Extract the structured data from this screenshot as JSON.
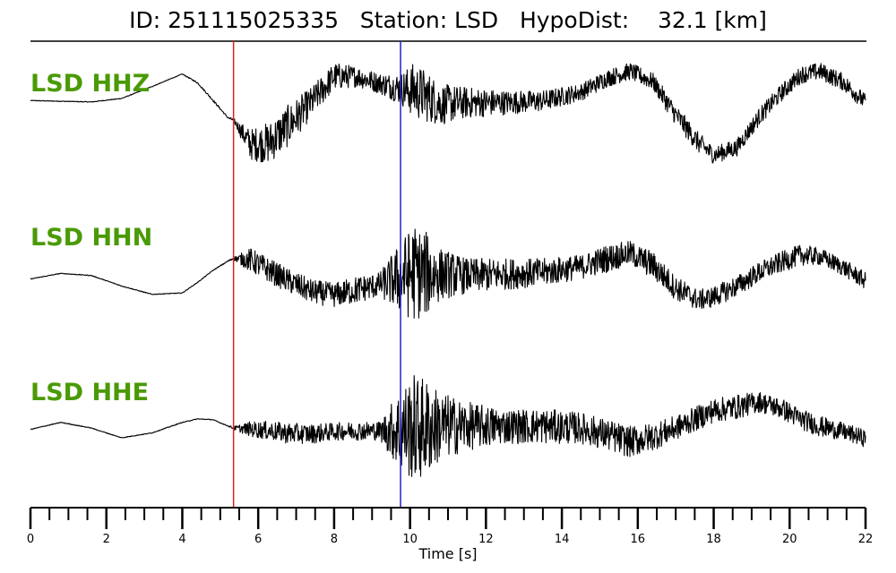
{
  "header": {
    "title": "ID: 251115025335   Station: LSD   HypoDist:    32.1 [km]"
  },
  "colors": {
    "label": "#4a9a06",
    "trace": "#000000",
    "p_pick": "#e02020",
    "s_pick": "#2020d0"
  },
  "chart_data": {
    "type": "line",
    "title": "ID: 251115025335   Station: LSD   HypoDist:    32.1 [km]",
    "xlabel": "Time [s]",
    "xlim": [
      0,
      22
    ],
    "x_ticks": [
      0,
      2,
      4,
      6,
      8,
      10,
      12,
      14,
      16,
      18,
      20,
      22
    ],
    "x_minor_step": 0.5,
    "grid": false,
    "picks": [
      {
        "phase": "P",
        "time": 5.35,
        "color": "#e02020"
      },
      {
        "phase": "S",
        "time": 9.75,
        "color": "#2020d0"
      }
    ],
    "series": [
      {
        "name": "LSD HHZ",
        "envelope": {
          "t": [
            0,
            0.8,
            1.6,
            2.4,
            3.2,
            4.0,
            4.4,
            4.8,
            5.2,
            5.35,
            5.8,
            6.3,
            6.8,
            7.4,
            8.0,
            8.6,
            9.2,
            9.75,
            10.1,
            10.4,
            10.8,
            11.5,
            12.5,
            13.5,
            14.5,
            15.2,
            15.8,
            16.4,
            17.0,
            17.6,
            18.0,
            18.6,
            19.2,
            19.8,
            20.3,
            20.8,
            21.4,
            22.0
          ],
          "low": [
            0.35,
            0.34,
            0.33,
            0.38,
            0.55,
            0.73,
            0.6,
            0.35,
            0.1,
            0.05,
            -0.5,
            -0.55,
            -0.3,
            0.1,
            0.5,
            0.55,
            0.45,
            0.3,
            0.1,
            0.05,
            0.0,
            0.1,
            0.15,
            0.2,
            0.35,
            0.55,
            0.65,
            0.5,
            0.0,
            -0.4,
            -0.55,
            -0.45,
            0.0,
            0.35,
            0.6,
            0.65,
            0.5,
            0.2
          ],
          "high": [
            0.36,
            0.35,
            0.34,
            0.39,
            0.56,
            0.74,
            0.62,
            0.38,
            0.12,
            0.1,
            -0.05,
            0.05,
            0.3,
            0.55,
            0.9,
            0.85,
            0.75,
            0.75,
            0.9,
            0.8,
            0.6,
            0.55,
            0.5,
            0.5,
            0.6,
            0.8,
            0.9,
            0.75,
            0.3,
            -0.1,
            -0.3,
            -0.2,
            0.25,
            0.6,
            0.85,
            0.9,
            0.75,
            0.45
          ]
        }
      },
      {
        "name": "LSD HHN",
        "envelope": {
          "t": [
            0,
            0.8,
            1.6,
            2.4,
            3.2,
            4.0,
            4.4,
            4.8,
            5.2,
            5.35,
            5.8,
            6.3,
            6.8,
            7.4,
            8.0,
            8.6,
            9.2,
            9.75,
            10.1,
            10.4,
            10.8,
            11.5,
            12.5,
            13.5,
            14.5,
            15.2,
            15.8,
            16.4,
            17.0,
            17.6,
            18.0,
            18.6,
            19.2,
            19.8,
            20.3,
            20.8,
            21.4,
            22.0
          ],
          "low": [
            0.0,
            0.08,
            0.05,
            -0.1,
            -0.22,
            -0.2,
            -0.05,
            0.12,
            0.25,
            0.28,
            0.1,
            -0.05,
            -0.2,
            -0.35,
            -0.4,
            -0.35,
            -0.25,
            -0.5,
            -0.6,
            -0.55,
            -0.3,
            -0.2,
            -0.15,
            -0.1,
            0.0,
            0.1,
            0.2,
            0.0,
            -0.3,
            -0.45,
            -0.4,
            -0.25,
            -0.05,
            0.1,
            0.2,
            0.2,
            0.05,
            -0.15
          ],
          "high": [
            0.01,
            0.09,
            0.06,
            -0.09,
            -0.21,
            -0.19,
            -0.04,
            0.13,
            0.27,
            0.32,
            0.45,
            0.3,
            0.15,
            0.0,
            -0.05,
            0.05,
            0.1,
            0.55,
            0.8,
            0.7,
            0.45,
            0.3,
            0.3,
            0.3,
            0.35,
            0.5,
            0.55,
            0.4,
            0.05,
            -0.15,
            -0.1,
            0.05,
            0.25,
            0.4,
            0.5,
            0.45,
            0.3,
            0.1
          ]
        }
      },
      {
        "name": "LSD HHE",
        "envelope": {
          "t": [
            0,
            0.8,
            1.6,
            2.4,
            3.2,
            4.0,
            4.4,
            4.8,
            5.2,
            5.35,
            5.8,
            6.3,
            6.8,
            7.4,
            8.0,
            8.6,
            9.2,
            9.75,
            10.1,
            10.4,
            10.8,
            11.5,
            12.5,
            13.5,
            14.5,
            15.2,
            15.8,
            16.4,
            17.0,
            17.6,
            18.0,
            18.6,
            19.2,
            19.8,
            20.3,
            20.8,
            21.4,
            22.0
          ],
          "low": [
            0.0,
            0.1,
            0.02,
            -0.12,
            -0.05,
            0.1,
            0.15,
            0.14,
            0.05,
            0.0,
            -0.1,
            -0.15,
            -0.2,
            -0.2,
            -0.15,
            -0.15,
            -0.15,
            -0.6,
            -0.75,
            -0.7,
            -0.45,
            -0.3,
            -0.2,
            -0.2,
            -0.2,
            -0.3,
            -0.4,
            -0.3,
            -0.15,
            0.0,
            0.1,
            0.15,
            0.25,
            0.15,
            0.0,
            -0.1,
            -0.15,
            -0.25
          ],
          "high": [
            0.01,
            0.11,
            0.03,
            -0.11,
            -0.04,
            0.11,
            0.16,
            0.15,
            0.06,
            0.05,
            0.12,
            0.12,
            0.1,
            0.08,
            0.1,
            0.12,
            0.12,
            0.6,
            0.8,
            0.75,
            0.55,
            0.4,
            0.3,
            0.3,
            0.25,
            0.15,
            0.05,
            0.1,
            0.2,
            0.35,
            0.45,
            0.5,
            0.55,
            0.45,
            0.3,
            0.2,
            0.1,
            0.0
          ]
        }
      }
    ]
  }
}
